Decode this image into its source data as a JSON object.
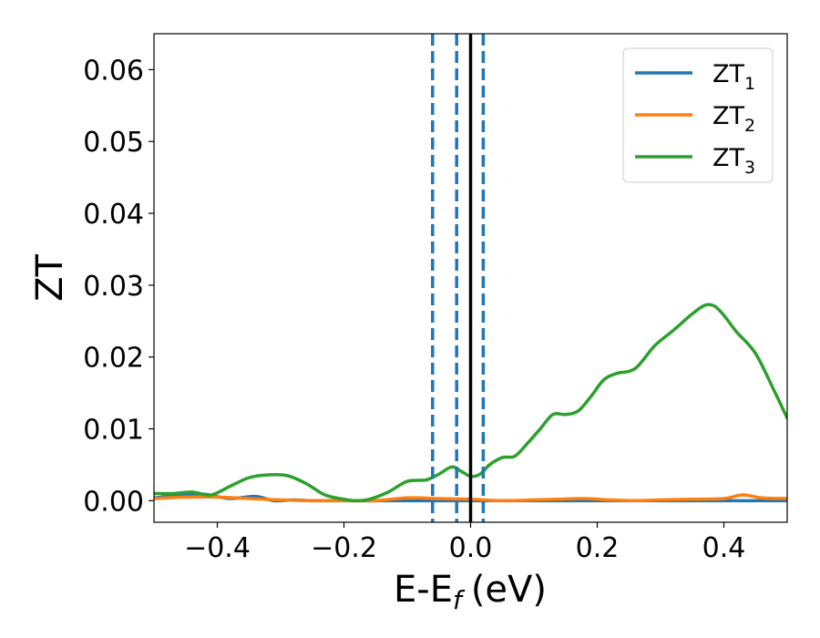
{
  "chart_data": {
    "type": "line",
    "xlabel": "E-E",
    "xlabel_sub": "f",
    "xlabel_unit": "(eV)",
    "ylabel": "ZT",
    "xlim": [
      -0.5,
      0.5
    ],
    "ylim": [
      -0.003,
      0.065
    ],
    "grid": false,
    "legend_position": "top-right",
    "x_ticks": [
      -0.4,
      -0.2,
      0.0,
      0.2,
      0.4
    ],
    "x_tick_labels": [
      "−0.4",
      "−0.2",
      "0.0",
      "0.2",
      "0.4"
    ],
    "y_ticks": [
      0.0,
      0.01,
      0.02,
      0.03,
      0.04,
      0.05,
      0.06
    ],
    "y_tick_labels": [
      "0.00",
      "0.01",
      "0.02",
      "0.03",
      "0.04",
      "0.05",
      "0.06"
    ],
    "vlines": [
      {
        "x": -0.06,
        "style": "dashed",
        "color": "#1f77b4"
      },
      {
        "x": -0.022,
        "style": "dashed",
        "color": "#1f77b4"
      },
      {
        "x": 0.0,
        "style": "solid",
        "color": "#000000"
      },
      {
        "x": 0.02,
        "style": "dashed",
        "color": "#1f77b4"
      }
    ],
    "series": [
      {
        "name": "ZT",
        "name_sub": "1",
        "color": "#1f77b4",
        "x": [
          -0.5,
          -0.45,
          -0.42,
          -0.38,
          -0.34,
          -0.31,
          -0.28,
          -0.25,
          -0.22,
          -0.2,
          -0.18,
          -0.15,
          -0.1,
          0.0,
          0.5
        ],
        "y": [
          0.0004,
          0.0008,
          0.0009,
          0.0003,
          0.0006,
          0.0,
          0.0001,
          0.0,
          0.0,
          0.0,
          0.0,
          0.0,
          0.0,
          0.0,
          0.0
        ]
      },
      {
        "name": "ZT",
        "name_sub": "2",
        "color": "#ff7f0e",
        "x": [
          -0.5,
          -0.45,
          -0.4,
          -0.35,
          -0.3,
          -0.25,
          -0.2,
          -0.15,
          -0.1,
          -0.05,
          0.0,
          0.05,
          0.1,
          0.14,
          0.18,
          0.22,
          0.26,
          0.3,
          0.35,
          0.4,
          0.43,
          0.46,
          0.5
        ],
        "y": [
          0.0003,
          0.0005,
          0.0005,
          0.0003,
          0.0001,
          0.0,
          0.0,
          0.0,
          0.0004,
          0.0003,
          0.0002,
          0.0,
          0.0001,
          0.0002,
          0.0003,
          0.0001,
          0.0,
          0.0001,
          0.0002,
          0.0003,
          0.0008,
          0.0004,
          0.0003
        ]
      },
      {
        "name": "ZT",
        "name_sub": "3",
        "color": "#2ca02c",
        "x": [
          -0.5,
          -0.47,
          -0.44,
          -0.41,
          -0.38,
          -0.35,
          -0.32,
          -0.29,
          -0.26,
          -0.23,
          -0.2,
          -0.18,
          -0.16,
          -0.13,
          -0.1,
          -0.07,
          -0.05,
          -0.03,
          -0.015,
          0.0,
          0.015,
          0.03,
          0.05,
          0.07,
          0.09,
          0.11,
          0.13,
          0.15,
          0.17,
          0.19,
          0.21,
          0.23,
          0.26,
          0.29,
          0.32,
          0.35,
          0.37,
          0.385,
          0.4,
          0.42,
          0.45,
          0.48,
          0.5
        ],
        "y": [
          0.001,
          0.001,
          0.0012,
          0.0008,
          0.002,
          0.0032,
          0.0036,
          0.0035,
          0.0024,
          0.0008,
          0.0002,
          0.0,
          0.0002,
          0.0012,
          0.0027,
          0.0029,
          0.0037,
          0.0047,
          0.0041,
          0.0034,
          0.0037,
          0.005,
          0.006,
          0.0062,
          0.008,
          0.01,
          0.012,
          0.012,
          0.0125,
          0.0145,
          0.0168,
          0.0177,
          0.0184,
          0.0215,
          0.0237,
          0.026,
          0.0272,
          0.0271,
          0.0258,
          0.0235,
          0.0205,
          0.0152,
          0.0115
        ]
      }
    ]
  }
}
